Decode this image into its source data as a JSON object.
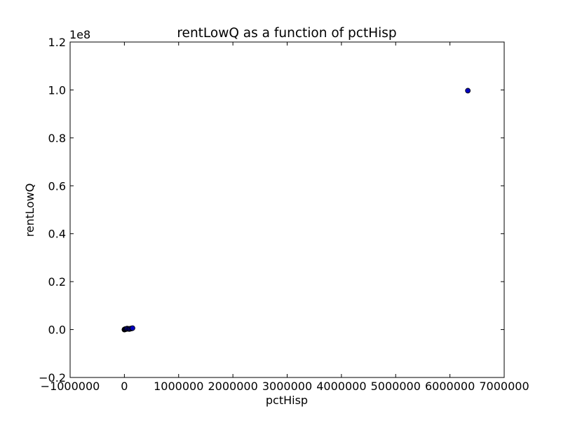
{
  "chart_data": {
    "type": "scatter",
    "title": "rentLowQ as a function of pctHisp",
    "xlabel": "pctHisp",
    "ylabel": "rentLowQ",
    "y_multiplier_label": "1e8",
    "xlim": [
      -1000000,
      7000000
    ],
    "ylim": [
      -0.2,
      1.2
    ],
    "y_scale_factor": 100000000,
    "x_ticks": [
      -1000000,
      0,
      1000000,
      2000000,
      3000000,
      4000000,
      5000000,
      6000000,
      7000000
    ],
    "x_tick_labels": [
      "−1000000",
      "0",
      "1000000",
      "2000000",
      "3000000",
      "4000000",
      "5000000",
      "6000000",
      "7000000"
    ],
    "y_ticks": [
      -0.2,
      0.0,
      0.2,
      0.4,
      0.6,
      0.8,
      1.0,
      1.2
    ],
    "y_tick_labels": [
      "−0.2",
      "0.0",
      "0.2",
      "0.4",
      "0.6",
      "0.8",
      "1.0",
      "1.2"
    ],
    "grid": false,
    "marker_color": "#0000bf",
    "marker_edge_color": "#000000",
    "series": [
      {
        "points": [
          {
            "x": 0,
            "y": 0.0
          },
          {
            "x": 5000,
            "y": 0.0005
          },
          {
            "x": 10000,
            "y": 0.001
          },
          {
            "x": 15000,
            "y": 0.0015
          },
          {
            "x": 20000,
            "y": 0.002
          },
          {
            "x": 30000,
            "y": 0.002
          },
          {
            "x": 40000,
            "y": 0.003
          },
          {
            "x": 50000,
            "y": 0.004
          },
          {
            "x": 70000,
            "y": 0.003
          },
          {
            "x": 90000,
            "y": 0.002
          },
          {
            "x": 100000,
            "y": 0.003
          },
          {
            "x": 120000,
            "y": 0.004
          },
          {
            "x": 140000,
            "y": 0.005
          },
          {
            "x": 150000,
            "y": 0.006
          },
          {
            "x": 6330000,
            "y": 0.997
          }
        ]
      }
    ]
  }
}
